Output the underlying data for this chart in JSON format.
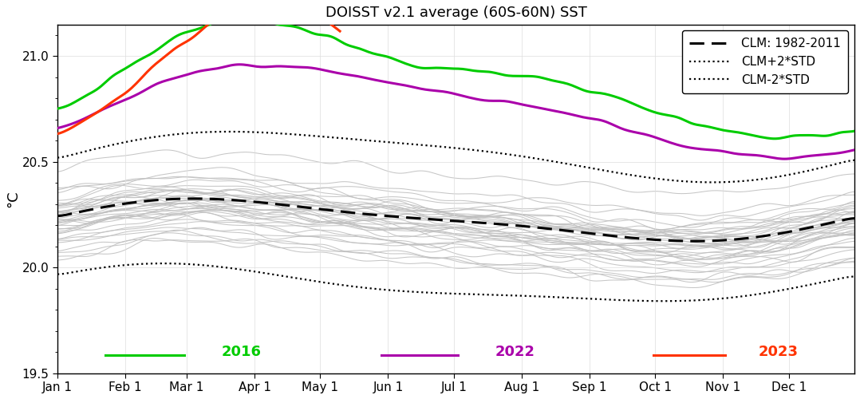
{
  "title": "DOISST v2.1 average (60S-60N) SST",
  "ylabel": "°C",
  "ylim": [
    19.5,
    21.15
  ],
  "yticks": [
    19.5,
    20.0,
    20.5,
    21.0
  ],
  "background_color": "#ffffff",
  "clm_color": "#000000",
  "clm_plus_color": "#000000",
  "clm_minus_color": "#000000",
  "year2016_color": "#00cc00",
  "year2022_color": "#aa00aa",
  "year2023_color": "#ff3300",
  "gray_color": "#c0c0c0",
  "legend_labels": [
    "CLM: 1982-2011",
    "CLM+2*STD",
    "CLM-2*STD"
  ],
  "bottom_labels": [
    "2016",
    "2022",
    "2023"
  ],
  "month_ticks": [
    "Jan 1",
    "Feb 1",
    "Mar 1",
    "Apr 1",
    "May 1",
    "Jun 1",
    "Jul 1",
    "Aug 1",
    "Sep 1",
    "Oct 1",
    "Nov 1",
    "Dec 1"
  ],
  "n_days": 365,
  "seed": 42
}
